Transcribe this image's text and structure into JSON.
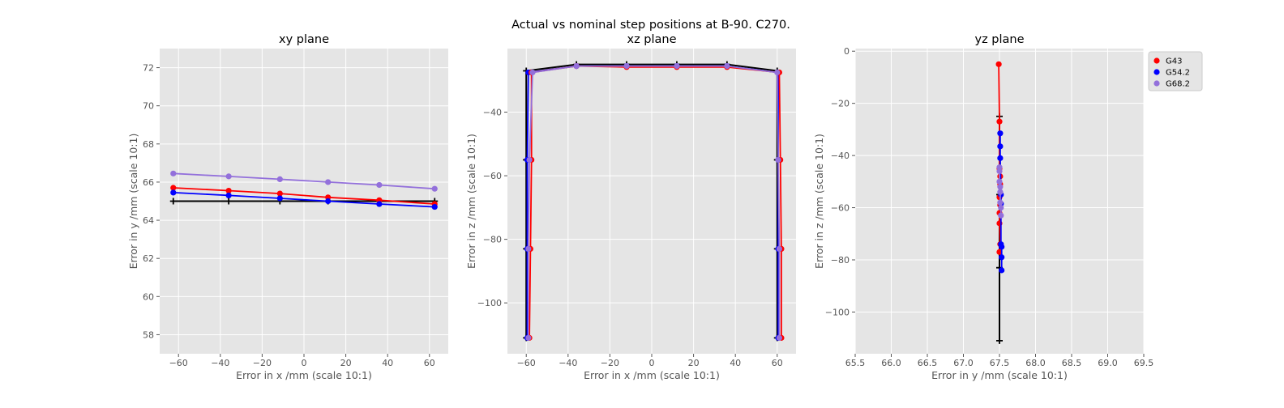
{
  "figure_title": "Actual vs nominal step positions at B-90. C270.",
  "colors": {
    "background": "#e5e5e5",
    "grid": "#ffffff",
    "nominal": "#000000",
    "G43": "#ff0000",
    "G54.2": "#0000ff",
    "G68.2": "#9370db"
  },
  "chart_data": [
    {
      "type": "line",
      "title": "xy plane",
      "xlabel": "Error in x /mm (scale 10:1)",
      "ylabel": "Error in y /mm (scale 10:1)",
      "xlim": [
        -69,
        69
      ],
      "ylim": [
        57,
        73
      ],
      "xticks": [
        -60,
        -40,
        -20,
        0,
        20,
        40,
        60
      ],
      "yticks": [
        58,
        60,
        62,
        64,
        66,
        68,
        70,
        72
      ],
      "grid": true,
      "series": [
        {
          "name": "nominal",
          "color": "#000000",
          "marker": "plus",
          "x": [
            -62.5,
            -36,
            -11.5,
            11.5,
            36,
            62.5
          ],
          "y": [
            65.0,
            65.0,
            65.0,
            65.0,
            65.0,
            65.0
          ]
        },
        {
          "name": "G43",
          "color": "#ff0000",
          "marker": "circle",
          "x": [
            -62.5,
            -36,
            -11.5,
            11.5,
            36,
            62.5
          ],
          "y": [
            65.7,
            65.55,
            65.4,
            65.2,
            65.05,
            64.85
          ]
        },
        {
          "name": "G54.2",
          "color": "#0000ff",
          "marker": "circle",
          "x": [
            -62.5,
            -36,
            -11.5,
            11.5,
            36,
            62.5
          ],
          "y": [
            65.45,
            65.3,
            65.15,
            65.0,
            64.85,
            64.7
          ]
        },
        {
          "name": "G68.2",
          "color": "#9370db",
          "marker": "circle",
          "x": [
            -62.5,
            -36,
            -11.5,
            11.5,
            36,
            62.5
          ],
          "y": [
            66.45,
            66.3,
            66.15,
            66.0,
            65.85,
            65.65
          ]
        }
      ]
    },
    {
      "type": "line",
      "title": "xz plane",
      "xlabel": "Error in x /mm (scale 10:1)",
      "ylabel": "Error in z /mm (scale 10:1)",
      "xlim": [
        -69,
        69
      ],
      "ylim": [
        -116,
        -20
      ],
      "xticks": [
        -60,
        -40,
        -20,
        0,
        20,
        40,
        60
      ],
      "yticks": [
        -40,
        -60,
        -80,
        -100
      ],
      "grid": true,
      "series": [
        {
          "name": "nominal",
          "color": "#000000",
          "marker": "plus",
          "x": [
            -60,
            -60,
            -60,
            -60,
            -36,
            -12,
            12,
            36,
            60,
            60,
            60,
            60
          ],
          "y": [
            -111,
            -83,
            -55,
            -27,
            -25,
            -25,
            -25,
            -25,
            -27,
            -55,
            -83,
            -111
          ]
        },
        {
          "name": "G54.2",
          "color": "#0000ff",
          "marker": "circle",
          "x": [
            -59.5,
            -59.5,
            -59.5,
            -59,
            -36,
            -12,
            12,
            36,
            60.5,
            60.5,
            60.5,
            60.5
          ],
          "y": [
            -111,
            -83,
            -55,
            -27.5,
            -25.5,
            -25.5,
            -25.5,
            -25.5,
            -27.5,
            -55,
            -83,
            -111
          ]
        },
        {
          "name": "G43",
          "color": "#ff0000",
          "marker": "circle",
          "x": [
            -58.5,
            -58,
            -57.5,
            -57.5,
            -36,
            -12,
            12,
            36,
            61,
            61.5,
            62,
            62
          ],
          "y": [
            -111,
            -83,
            -55,
            -27.5,
            -25.5,
            -25.8,
            -25.8,
            -25.8,
            -27.5,
            -55,
            -83,
            -111
          ]
        },
        {
          "name": "G68.2",
          "color": "#9370db",
          "marker": "circle",
          "x": [
            -59,
            -59,
            -58.5,
            -57,
            -36,
            -12,
            12,
            36,
            60,
            60.5,
            61,
            61
          ],
          "y": [
            -111,
            -83,
            -55,
            -27.5,
            -25.5,
            -25.5,
            -25.5,
            -25.5,
            -27.5,
            -55,
            -83,
            -111
          ]
        }
      ]
    },
    {
      "type": "line",
      "title": "yz plane",
      "xlabel": "Error in y /mm (scale 10:1)",
      "ylabel": "Error in z /mm (scale 10:1)",
      "xlim": [
        65.5,
        69.5
      ],
      "ylim": [
        -116,
        1
      ],
      "xticks": [
        65.5,
        66.0,
        66.5,
        67.0,
        67.5,
        68.0,
        68.5,
        69.0,
        69.5
      ],
      "xtick_labels": [
        "65.5",
        "66.0",
        "66.5",
        "67.0",
        "67.5",
        "68.0",
        "68.5",
        "69.0",
        "69.5"
      ],
      "yticks": [
        0,
        -20,
        -40,
        -60,
        -80,
        -100
      ],
      "grid": true,
      "legend": {
        "position": "outside-right-top",
        "entries": [
          "G43",
          "G54.2",
          "G68.2"
        ]
      },
      "series": [
        {
          "name": "nominal",
          "color": "#000000",
          "marker": "plus",
          "x": [
            67.5,
            67.5,
            67.5,
            67.5
          ],
          "y": [
            -111,
            -83,
            -55,
            -25
          ]
        },
        {
          "name": "G43",
          "color": "#ff0000",
          "marker": "circle",
          "x": [
            67.49,
            67.5,
            67.5,
            67.51,
            67.51,
            67.5,
            67.51,
            67.5,
            67.5,
            67.51,
            67.5
          ],
          "y": [
            -5,
            -27,
            -45,
            -48,
            -51,
            -56,
            -59,
            -62,
            -66,
            -74,
            -77
          ]
        },
        {
          "name": "G54.2",
          "color": "#0000ff",
          "marker": "circle",
          "x": [
            67.51,
            67.51,
            67.51,
            67.52,
            67.52,
            67.52,
            67.53,
            67.53,
            67.53
          ],
          "y": [
            -31.5,
            -36.5,
            -41,
            -55,
            -58.5,
            -74,
            -75,
            -79,
            -84
          ]
        },
        {
          "name": "G68.2",
          "color": "#9370db",
          "marker": "circle",
          "x": [
            67.5,
            67.5,
            67.5,
            67.51,
            67.51,
            67.51,
            67.52,
            67.52
          ],
          "y": [
            -44.5,
            -46,
            -50,
            -52,
            -54,
            -58,
            -60,
            -63
          ]
        }
      ]
    }
  ]
}
